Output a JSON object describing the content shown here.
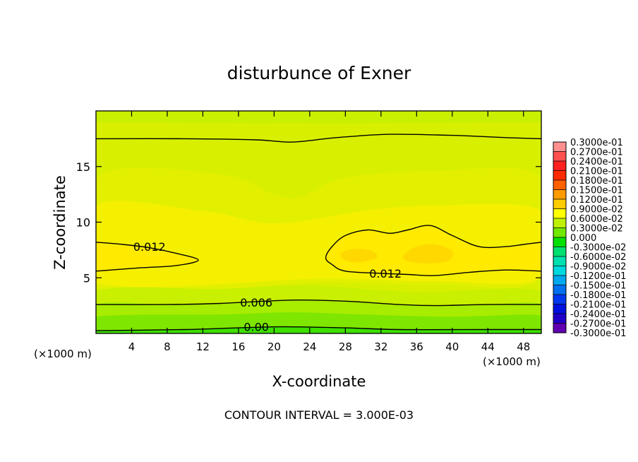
{
  "chart_data": {
    "type": "heatmap",
    "title": "disturbunce of Exner",
    "xlabel": "X-coordinate",
    "ylabel": "Z-coordinate",
    "x_unit_left": "(×1000 m)",
    "x_unit_right": "(×1000 m)",
    "xlim": [
      0,
      50
    ],
    "ylim": [
      0,
      20
    ],
    "x_ticks": [
      4,
      8,
      12,
      16,
      20,
      24,
      28,
      32,
      36,
      40,
      44,
      48
    ],
    "x_tick_labels": [
      "4",
      "8",
      "12",
      "16",
      "20",
      "24",
      "28",
      "32",
      "36",
      "40",
      "44",
      "48"
    ],
    "y_ticks": [
      5,
      10,
      15
    ],
    "y_tick_labels": [
      "5",
      "10",
      "15"
    ],
    "footer": "CONTOUR INTERVAL = 3.000E-03",
    "contour_labels": [
      {
        "text": "0.012",
        "x": 6,
        "z": 7.8
      },
      {
        "text": "0.012",
        "x": 32.5,
        "z": 5.4
      },
      {
        "text": "0.006",
        "x": 18,
        "z": 2.8
      },
      {
        "text": "0.00",
        "x": 18,
        "z": 0.6
      }
    ],
    "contour_lines": [
      {
        "level": 0.012,
        "points": [
          [
            0,
            8.2
          ],
          [
            3,
            8.0
          ],
          [
            6,
            7.7
          ],
          [
            9,
            7.2
          ],
          [
            11.5,
            6.6
          ],
          [
            9,
            6.1
          ],
          [
            5,
            5.9
          ],
          [
            0,
            5.6
          ]
        ]
      },
      {
        "level": 0.012,
        "points": [
          [
            50,
            8.2
          ],
          [
            48,
            8.0
          ],
          [
            46,
            7.8
          ],
          [
            43,
            7.8
          ],
          [
            40,
            8.8
          ],
          [
            37.5,
            9.7
          ],
          [
            35,
            9.3
          ],
          [
            33,
            9.0
          ],
          [
            30.5,
            9.3
          ],
          [
            28,
            8.8
          ],
          [
            26.5,
            7.8
          ],
          [
            25.8,
            6.8
          ],
          [
            26.5,
            6.2
          ],
          [
            28,
            5.6
          ],
          [
            32,
            5.4
          ],
          [
            35,
            5.3
          ],
          [
            38,
            5.2
          ],
          [
            42,
            5.5
          ],
          [
            46,
            5.7
          ],
          [
            50,
            5.6
          ]
        ]
      },
      {
        "level": 0.015,
        "points": [
          [
            0,
            17.5
          ],
          [
            10,
            17.5
          ],
          [
            18,
            17.4
          ],
          [
            22,
            17.2
          ],
          [
            27,
            17.6
          ],
          [
            33,
            17.9
          ],
          [
            40,
            17.8
          ],
          [
            46,
            17.6
          ],
          [
            50,
            17.5
          ]
        ]
      },
      {
        "level": 0.006,
        "points": [
          [
            0,
            2.6
          ],
          [
            8,
            2.6
          ],
          [
            14,
            2.7
          ],
          [
            22,
            3.0
          ],
          [
            28,
            2.9
          ],
          [
            34,
            2.6
          ],
          [
            38,
            2.5
          ],
          [
            44,
            2.6
          ],
          [
            50,
            2.6
          ]
        ]
      },
      {
        "level": 0.0,
        "points": [
          [
            0,
            0.25
          ],
          [
            10,
            0.35
          ],
          [
            16,
            0.5
          ],
          [
            21,
            0.6
          ],
          [
            28,
            0.5
          ],
          [
            34,
            0.35
          ],
          [
            44,
            0.35
          ],
          [
            50,
            0.35
          ]
        ]
      }
    ],
    "fill_bands": [
      {
        "color": "#c8f000",
        "points": [
          [
            0,
            19.0
          ],
          [
            50,
            19.0
          ],
          [
            50,
            20
          ],
          [
            0,
            20
          ]
        ]
      },
      {
        "color": "#e2f000",
        "points": [
          [
            0,
            14.0
          ],
          [
            14,
            14.3
          ],
          [
            20,
            12.5
          ],
          [
            23,
            12.3
          ],
          [
            28,
            14.0
          ],
          [
            38,
            14.6
          ],
          [
            50,
            14.0
          ],
          [
            50,
            5.0
          ],
          [
            38,
            4.4
          ],
          [
            25,
            4.6
          ],
          [
            0,
            4.2
          ]
        ]
      },
      {
        "color": "#f5f000",
        "points": [
          [
            0,
            11.5
          ],
          [
            12,
            11.0
          ],
          [
            17,
            10.2
          ],
          [
            20,
            9.9
          ],
          [
            24,
            10.2
          ],
          [
            30,
            11.0
          ],
          [
            38,
            11.5
          ],
          [
            50,
            11.0
          ],
          [
            50,
            5.0
          ],
          [
            38,
            4.7
          ],
          [
            25,
            4.9
          ],
          [
            0,
            4.6
          ]
        ]
      },
      {
        "color": "#ffea00",
        "points": [
          [
            0,
            8.2
          ],
          [
            3,
            8.0
          ],
          [
            6,
            7.7
          ],
          [
            9,
            7.2
          ],
          [
            11.5,
            6.6
          ],
          [
            9,
            6.1
          ],
          [
            5,
            5.9
          ],
          [
            0,
            5.6
          ]
        ]
      },
      {
        "color": "#ffea00",
        "points": [
          [
            50,
            8.2
          ],
          [
            48,
            8.0
          ],
          [
            46,
            7.8
          ],
          [
            43,
            7.8
          ],
          [
            40,
            8.8
          ],
          [
            37.5,
            9.7
          ],
          [
            35,
            9.3
          ],
          [
            33,
            9.0
          ],
          [
            30.5,
            9.3
          ],
          [
            28,
            8.8
          ],
          [
            26.5,
            7.8
          ],
          [
            25.8,
            6.8
          ],
          [
            26.5,
            6.2
          ],
          [
            28,
            5.6
          ],
          [
            32,
            5.4
          ],
          [
            35,
            5.3
          ],
          [
            38,
            5.2
          ],
          [
            42,
            5.5
          ],
          [
            46,
            5.7
          ],
          [
            50,
            5.6
          ]
        ]
      },
      {
        "color": "#ffd800",
        "points": [
          [
            27.5,
            7.2
          ],
          [
            29,
            7.6
          ],
          [
            31,
            7.4
          ],
          [
            31.5,
            6.8
          ],
          [
            29.5,
            6.4
          ],
          [
            28,
            6.6
          ]
        ]
      },
      {
        "color": "#ffd800",
        "points": [
          [
            34.5,
            7.0
          ],
          [
            36,
            7.8
          ],
          [
            38,
            8.0
          ],
          [
            40,
            7.4
          ],
          [
            39.5,
            6.5
          ],
          [
            37,
            6.3
          ],
          [
            35,
            6.5
          ]
        ]
      },
      {
        "color": "#c8f000",
        "points": [
          [
            0,
            0
          ],
          [
            50,
            0
          ],
          [
            50,
            3.8
          ],
          [
            36,
            3.7
          ],
          [
            24,
            4.3
          ],
          [
            14,
            4.0
          ],
          [
            0,
            3.8
          ]
        ]
      },
      {
        "color": "#a8ec00",
        "points": [
          [
            0,
            0
          ],
          [
            50,
            0
          ],
          [
            50,
            2.6
          ],
          [
            44,
            2.6
          ],
          [
            38,
            2.5
          ],
          [
            34,
            2.6
          ],
          [
            28,
            2.9
          ],
          [
            22,
            3.0
          ],
          [
            14,
            2.7
          ],
          [
            8,
            2.6
          ],
          [
            0,
            2.6
          ]
        ]
      },
      {
        "color": "#7ee600",
        "points": [
          [
            0,
            0
          ],
          [
            50,
            0
          ],
          [
            50,
            1.6
          ],
          [
            40,
            1.5
          ],
          [
            30,
            1.7
          ],
          [
            22,
            1.9
          ],
          [
            14,
            1.7
          ],
          [
            0,
            1.5
          ]
        ]
      },
      {
        "color": "#3ee000",
        "points": [
          [
            0,
            0
          ],
          [
            50,
            0
          ],
          [
            50,
            0.35
          ],
          [
            44,
            0.35
          ],
          [
            34,
            0.35
          ],
          [
            28,
            0.5
          ],
          [
            21,
            0.6
          ],
          [
            16,
            0.5
          ],
          [
            10,
            0.35
          ],
          [
            0,
            0.25
          ]
        ]
      }
    ],
    "background_color": "#d8f000",
    "colorbar": {
      "labels": [
        "0.3000e-01",
        "0.2700e-01",
        "0.2400e-01",
        "0.2100e-01",
        "0.1800e-01",
        "0.1500e-01",
        "0.1200e-01",
        "0.9000e-02",
        "0.6000e-02",
        "0.3000e-02",
        "0.000",
        "-0.3000e-02",
        "-0.6000e-02",
        "-0.9000e-02",
        "-0.1200e-01",
        "-0.1500e-01",
        "-0.1800e-01",
        "-0.2100e-01",
        "-0.2400e-01",
        "-0.2700e-01",
        "-0.3000e-01"
      ],
      "colors": [
        "#ff9090",
        "#ff5050",
        "#ff2020",
        "#ff2a00",
        "#ff6000",
        "#ff9a00",
        "#ffcc00",
        "#ffff00",
        "#bff000",
        "#70e800",
        "#00e000",
        "#00e070",
        "#00e0b0",
        "#00d8e0",
        "#00a8f0",
        "#0070f0",
        "#0038f0",
        "#0010e0",
        "#2000c8",
        "#6000b0"
      ]
    }
  }
}
